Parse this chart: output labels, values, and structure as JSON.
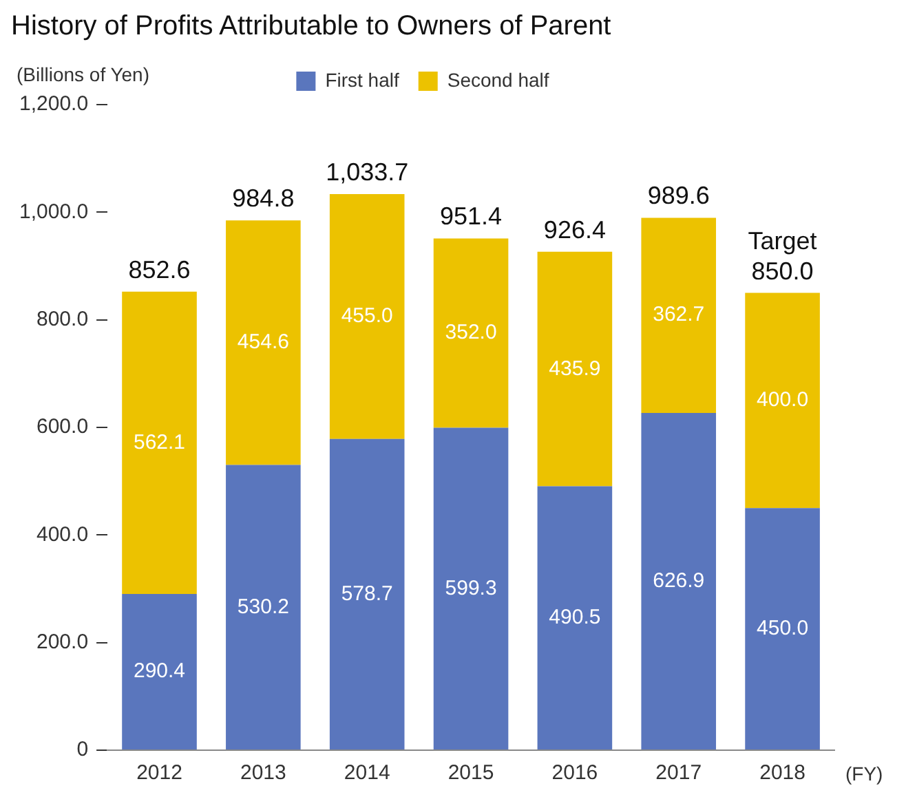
{
  "chart_data": {
    "type": "bar",
    "title": "History of Profits Attributable to Owners of Parent",
    "ylabel": "(Billions of Yen)",
    "xlabel": "(FY)",
    "categories": [
      "2012",
      "2013",
      "2014",
      "2015",
      "2016",
      "2017",
      "2018"
    ],
    "stacked": true,
    "series": [
      {
        "name": "First half",
        "color": "#5a76bd",
        "values": [
          290.4,
          530.2,
          578.7,
          599.3,
          490.5,
          626.9,
          450.0
        ],
        "value_labels": [
          "290.4",
          "530.2",
          "578.7",
          "599.3",
          "490.5",
          "626.9",
          "450.0"
        ]
      },
      {
        "name": "Second half",
        "color": "#ecc200",
        "values": [
          562.1,
          454.6,
          455.0,
          352.0,
          435.9,
          362.7,
          400.0
        ],
        "value_labels": [
          "562.1",
          "454.6",
          "455.0",
          "352.0",
          "435.9",
          "362.7",
          "400.0"
        ]
      }
    ],
    "totals": [
      "852.6",
      "984.8",
      "1,033.7",
      "951.4",
      "926.4",
      "989.6",
      "850.0"
    ],
    "annotations": [
      {
        "text": "Target",
        "x": "2018",
        "y": 850.0
      }
    ],
    "ylim": [
      0,
      1200
    ],
    "yticks": [
      {
        "value": 0,
        "label": "0"
      },
      {
        "value": 200,
        "label": "200.0"
      },
      {
        "value": 400,
        "label": "400.0"
      },
      {
        "value": 600,
        "label": "600.0"
      },
      {
        "value": 800,
        "label": "800.0"
      },
      {
        "value": 1000,
        "label": "1,000.0"
      },
      {
        "value": 1200,
        "label": "1,200.0"
      }
    ],
    "grid": false,
    "legend": "top"
  }
}
